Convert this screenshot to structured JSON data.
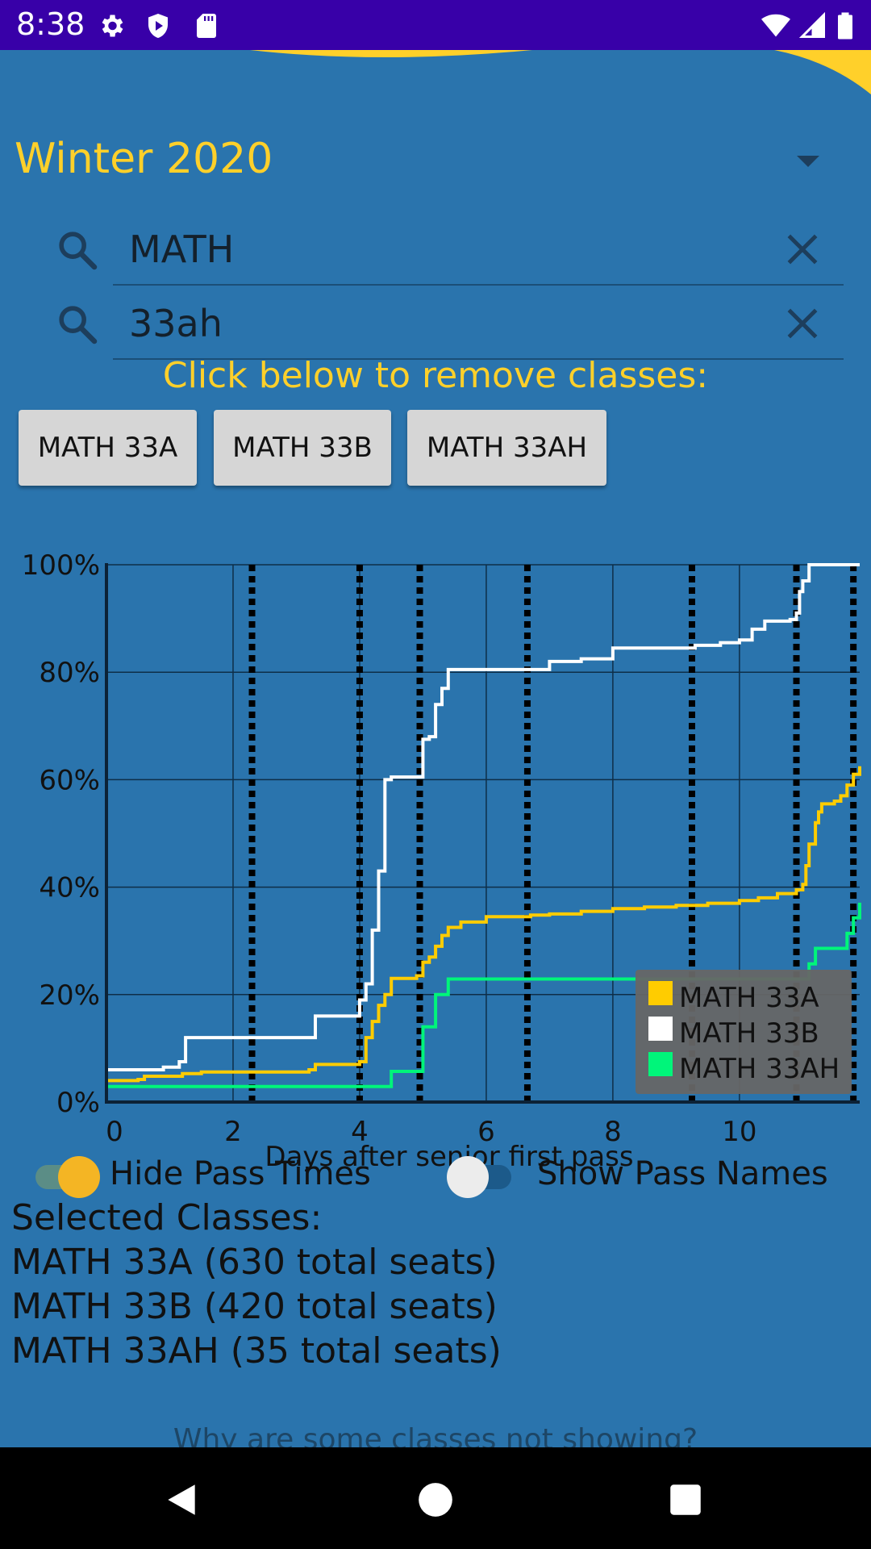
{
  "status_bar": {
    "time": "8:38",
    "left_icons": [
      "gear-icon",
      "play-shield-icon",
      "sd-card-icon"
    ],
    "right_icons": [
      "wifi-icon",
      "cell-signal-icon",
      "battery-icon"
    ],
    "background": "#3800a8"
  },
  "header": {
    "term": "Winter 2020"
  },
  "search": {
    "department": {
      "value": "MATH"
    },
    "course": {
      "value": "33ah"
    }
  },
  "instruction": "Click below to remove classes:",
  "class_buttons": [
    "MATH 33A",
    "MATH 33B",
    "MATH 33AH"
  ],
  "chart_data": {
    "type": "line",
    "xlabel": "Days after senior first pass",
    "ylabel": "",
    "xlim": [
      0,
      11.9
    ],
    "ylim": [
      0,
      100
    ],
    "x_ticks": [
      "0",
      "2",
      "4",
      "6",
      "8",
      "10"
    ],
    "y_ticks": [
      "0%",
      "20%",
      "40%",
      "60%",
      "80%",
      "100%"
    ],
    "grid": true,
    "legend_position": "bottom-right",
    "pass_time_markers": [
      2.3,
      4.0,
      4.95,
      6.65,
      9.25,
      10.9,
      11.8
    ],
    "series": [
      {
        "name": "MATH 33A",
        "color": "#ffcc00",
        "x": [
          0,
          0.5,
          0.6,
          1.2,
          1.5,
          3.2,
          3.3,
          4.0,
          4.1,
          4.2,
          4.3,
          4.4,
          4.5,
          4.9,
          5.0,
          5.1,
          5.2,
          5.3,
          5.4,
          5.6,
          6.0,
          6.7,
          7.0,
          7.5,
          8.0,
          8.5,
          9.0,
          9.5,
          10.0,
          10.3,
          10.6,
          10.9,
          11.0,
          11.05,
          11.1,
          11.2,
          11.25,
          11.3,
          11.5,
          11.6,
          11.7,
          11.8,
          11.9
        ],
        "y": [
          4,
          4.2,
          4.8,
          5.3,
          5.6,
          6,
          7,
          7.5,
          12,
          15,
          18,
          20,
          23,
          23.5,
          26,
          27,
          29,
          31,
          32.5,
          33.5,
          34.5,
          34.8,
          35,
          35.5,
          36,
          36.3,
          36.6,
          37,
          37.5,
          38,
          38.8,
          39.5,
          40.5,
          44,
          48,
          52,
          54,
          55.5,
          56,
          57,
          59,
          61,
          62.5
        ]
      },
      {
        "name": "MATH 33B",
        "color": "#ffffff",
        "x": [
          0,
          0.8,
          0.9,
          1.15,
          1.25,
          3.2,
          3.3,
          3.95,
          4.0,
          4.1,
          4.2,
          4.3,
          4.4,
          4.5,
          4.9,
          5.0,
          5.1,
          5.2,
          5.3,
          5.4,
          5.5,
          6.7,
          7.0,
          7.5,
          8.0,
          9.0,
          9.3,
          9.7,
          10.0,
          10.2,
          10.4,
          10.8,
          10.9,
          10.95,
          11.0,
          11.1,
          11.9
        ],
        "y": [
          6,
          6,
          6.5,
          7.5,
          12,
          12,
          16,
          16,
          19,
          22,
          32,
          43,
          60,
          60.5,
          60.5,
          67.5,
          68,
          74,
          77,
          80.5,
          80.5,
          80.5,
          82,
          82.5,
          84.5,
          84.5,
          85,
          85.5,
          86,
          88,
          89.5,
          89.8,
          91,
          95,
          97,
          100,
          100
        ]
      },
      {
        "name": "MATH 33AH",
        "color": "#00f57a",
        "x": [
          0,
          4.3,
          4.5,
          4.9,
          5.0,
          5.2,
          5.4,
          5.6,
          6.0,
          7.0,
          8.0,
          9.0,
          10.0,
          10.95,
          11.0,
          11.1,
          11.2,
          11.3,
          11.5,
          11.6,
          11.7,
          11.8,
          11.9
        ],
        "y": [
          2.9,
          2.9,
          5.7,
          5.7,
          14,
          20,
          22.9,
          22.9,
          22.9,
          22.9,
          22.9,
          22.9,
          22.9,
          22.9,
          22.9,
          25.7,
          28.6,
          28.6,
          28.6,
          28.6,
          31.4,
          34.3,
          37.1
        ]
      }
    ]
  },
  "toggles": {
    "hide_pass_times": {
      "label": "Hide Pass Times",
      "on": true
    },
    "show_pass_names": {
      "label": "Show Pass Names",
      "on": false
    }
  },
  "selected": {
    "heading": "Selected Classes:",
    "items": [
      "MATH 33A (630 total seats)",
      "MATH 33B (420 total seats)",
      "MATH 33AH (35 total seats)"
    ]
  },
  "footer_link": "Why are some classes not showing?",
  "nav_bar": {
    "icons": [
      "back-icon",
      "home-icon",
      "recents-icon"
    ]
  }
}
